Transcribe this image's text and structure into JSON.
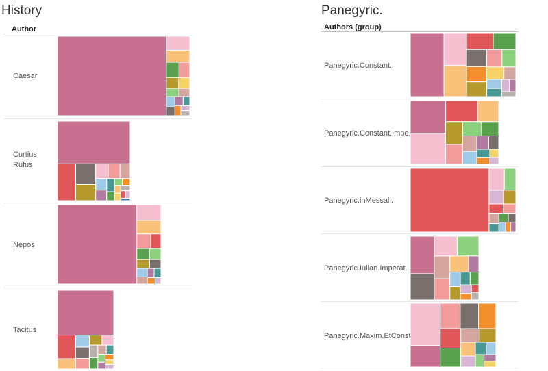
{
  "palette": {
    "pink": "#c87090",
    "lightpink": "#f5bfd0",
    "red": "#e15759",
    "salmon": "#f39c9c",
    "orange": "#f28e2b",
    "peach": "#f9c17a",
    "yellow": "#f4d366",
    "olive": "#b6992d",
    "green": "#59a14f",
    "lightgreen": "#8cd17d",
    "teal": "#499894",
    "lightblue": "#a0cbe8",
    "blue": "#4e79a7",
    "brown": "#79706e",
    "tan": "#d4a6a0",
    "mauve": "#b07aa1",
    "lightmauve": "#d7b5d4",
    "gray": "#bab0ac"
  },
  "panels": [
    {
      "title": "History",
      "header": "Author",
      "rows": [
        {
          "label": "Caesar",
          "cells": [
            {
              "color": "pink",
              "value": 58.0
            },
            {
              "color": "lightpink",
              "value": 2.2
            },
            {
              "color": "peach",
              "value": 1.9
            },
            {
              "color": "green",
              "value": 1.3
            },
            {
              "color": "salmon",
              "value": 1.1
            },
            {
              "color": "olive",
              "value": 0.9
            },
            {
              "color": "yellow",
              "value": 0.8
            },
            {
              "color": "lightgreen",
              "value": 0.7
            },
            {
              "color": "tan",
              "value": 0.6
            },
            {
              "color": "lightblue",
              "value": 0.6
            },
            {
              "color": "brown",
              "value": 0.5
            },
            {
              "color": "mauve",
              "value": 0.5
            },
            {
              "color": "teal",
              "value": 0.4
            },
            {
              "color": "orange",
              "value": 0.4
            },
            {
              "color": "lightmauve",
              "value": 0.3
            },
            {
              "color": "gray",
              "value": 0.3
            }
          ]
        },
        {
          "label": "Curtius Rufus",
          "cells": [
            {
              "color": "pink",
              "value": 27.0
            },
            {
              "color": "red",
              "value": 5.8
            },
            {
              "color": "brown",
              "value": 3.6
            },
            {
              "color": "olive",
              "value": 2.8
            },
            {
              "color": "lightpink",
              "value": 1.6
            },
            {
              "color": "salmon",
              "value": 1.5
            },
            {
              "color": "tan",
              "value": 1.3
            },
            {
              "color": "lightblue",
              "value": 1.1
            },
            {
              "color": "mauve",
              "value": 1.0
            },
            {
              "color": "teal",
              "value": 0.9
            },
            {
              "color": "green",
              "value": 0.6
            },
            {
              "color": "lightgreen",
              "value": 0.5
            },
            {
              "color": "orange",
              "value": 0.5
            },
            {
              "color": "peach",
              "value": 0.4
            },
            {
              "color": "yellow",
              "value": 0.4
            },
            {
              "color": "gray",
              "value": 0.4
            },
            {
              "color": "red",
              "value": 0.3
            },
            {
              "color": "lightmauve",
              "value": 0.3
            },
            {
              "color": "blue",
              "value": 0.2
            }
          ]
        },
        {
          "label": "Nepos",
          "cells": [
            {
              "color": "pink",
              "value": 50.0
            },
            {
              "color": "lightpink",
              "value": 3.0
            },
            {
              "color": "peach",
              "value": 2.6
            },
            {
              "color": "salmon",
              "value": 1.6
            },
            {
              "color": "red",
              "value": 1.2
            },
            {
              "color": "green",
              "value": 1.1
            },
            {
              "color": "lightgreen",
              "value": 1.0
            },
            {
              "color": "olive",
              "value": 0.9
            },
            {
              "color": "brown",
              "value": 0.8
            },
            {
              "color": "lightblue",
              "value": 0.7
            },
            {
              "color": "tan",
              "value": 0.6
            },
            {
              "color": "mauve",
              "value": 0.5
            },
            {
              "color": "teal",
              "value": 0.5
            },
            {
              "color": "orange",
              "value": 0.4
            },
            {
              "color": "lightmauve",
              "value": 0.3
            }
          ]
        },
        {
          "label": "Tacitus",
          "cells": [
            {
              "color": "pink",
              "value": 26.0
            },
            {
              "color": "red",
              "value": 4.4
            },
            {
              "color": "peach",
              "value": 1.9
            },
            {
              "color": "lightblue",
              "value": 1.7
            },
            {
              "color": "brown",
              "value": 1.6
            },
            {
              "color": "salmon",
              "value": 1.5
            },
            {
              "color": "olive",
              "value": 1.3
            },
            {
              "color": "lightpink",
              "value": 1.2
            },
            {
              "color": "gray",
              "value": 1.1
            },
            {
              "color": "green",
              "value": 1.0
            },
            {
              "color": "tan",
              "value": 0.8
            },
            {
              "color": "teal",
              "value": 0.7
            },
            {
              "color": "lightgreen",
              "value": 0.6
            },
            {
              "color": "mauve",
              "value": 0.5
            },
            {
              "color": "orange",
              "value": 0.5
            },
            {
              "color": "yellow",
              "value": 0.4
            },
            {
              "color": "lightmauve",
              "value": 0.4
            }
          ]
        }
      ]
    },
    {
      "title": "Panegyric.",
      "header": "Authors (group)",
      "rows": [
        {
          "label": "Panegyric.Constant.",
          "cells": [
            {
              "color": "pink",
              "value": 16.0
            },
            {
              "color": "lightpink",
              "value": 5.5
            },
            {
              "color": "peach",
              "value": 5.2
            },
            {
              "color": "red",
              "value": 3.3
            },
            {
              "color": "green",
              "value": 2.8
            },
            {
              "color": "brown",
              "value": 2.6
            },
            {
              "color": "orange",
              "value": 2.3
            },
            {
              "color": "olive",
              "value": 2.2
            },
            {
              "color": "salmon",
              "value": 2.0
            },
            {
              "color": "lightgreen",
              "value": 1.8
            },
            {
              "color": "yellow",
              "value": 1.6
            },
            {
              "color": "tan",
              "value": 1.1
            },
            {
              "color": "lightblue",
              "value": 1.0
            },
            {
              "color": "teal",
              "value": 0.9
            },
            {
              "color": "lightmauve",
              "value": 0.7
            },
            {
              "color": "mauve",
              "value": 0.6
            },
            {
              "color": "gray",
              "value": 0.5
            }
          ]
        },
        {
          "label": "Panegyric.Constant.Impe..",
          "cells": [
            {
              "color": "pink",
              "value": 9.5
            },
            {
              "color": "lightpink",
              "value": 9.0
            },
            {
              "color": "red",
              "value": 5.6
            },
            {
              "color": "peach",
              "value": 3.6
            },
            {
              "color": "olive",
              "value": 3.2
            },
            {
              "color": "salmon",
              "value": 2.8
            },
            {
              "color": "lightgreen",
              "value": 2.2
            },
            {
              "color": "green",
              "value": 2.0
            },
            {
              "color": "tan",
              "value": 1.8
            },
            {
              "color": "lightblue",
              "value": 1.5
            },
            {
              "color": "mauve",
              "value": 1.3
            },
            {
              "color": "brown",
              "value": 1.1
            },
            {
              "color": "teal",
              "value": 0.9
            },
            {
              "color": "orange",
              "value": 0.7
            },
            {
              "color": "yellow",
              "value": 0.6
            },
            {
              "color": "lightmauve",
              "value": 0.5
            }
          ]
        },
        {
          "label": "Panegyric.inMessall.",
          "cells": [
            {
              "color": "red",
              "value": 30.0
            },
            {
              "color": "lightpink",
              "value": 2.0
            },
            {
              "color": "lightgreen",
              "value": 1.5
            },
            {
              "color": "lightmauve",
              "value": 1.2
            },
            {
              "color": "olive",
              "value": 1.0
            },
            {
              "color": "red",
              "value": 0.8
            },
            {
              "color": "salmon",
              "value": 0.7
            },
            {
              "color": "tan",
              "value": 0.6
            },
            {
              "color": "teal",
              "value": 0.5
            },
            {
              "color": "green",
              "value": 0.5
            },
            {
              "color": "brown",
              "value": 0.4
            },
            {
              "color": "lightblue",
              "value": 0.4
            },
            {
              "color": "orange",
              "value": 0.3
            },
            {
              "color": "mauve",
              "value": 0.3
            }
          ]
        },
        {
          "label": "Panegyric.Iulian.Imperat.",
          "cells": [
            {
              "color": "pink",
              "value": 6.5
            },
            {
              "color": "brown",
              "value": 4.5
            },
            {
              "color": "lightpink",
              "value": 3.3
            },
            {
              "color": "lightgreen",
              "value": 3.1
            },
            {
              "color": "tan",
              "value": 2.6
            },
            {
              "color": "salmon",
              "value": 2.4
            },
            {
              "color": "peach",
              "value": 2.2
            },
            {
              "color": "mauve",
              "value": 1.2
            },
            {
              "color": "lightblue",
              "value": 1.1
            },
            {
              "color": "olive",
              "value": 1.0
            },
            {
              "color": "teal",
              "value": 0.9
            },
            {
              "color": "green",
              "value": 0.8
            },
            {
              "color": "lightmauve",
              "value": 0.7
            },
            {
              "color": "orange",
              "value": 0.5
            },
            {
              "color": "red",
              "value": 0.4
            },
            {
              "color": "gray",
              "value": 0.4
            }
          ]
        },
        {
          "label": "Panegyric.Maxim.EtConst.",
          "cells": [
            {
              "color": "lightpink",
              "value": 9.5
            },
            {
              "color": "pink",
              "value": 4.8
            },
            {
              "color": "salmon",
              "value": 3.8
            },
            {
              "color": "brown",
              "value": 3.5
            },
            {
              "color": "orange",
              "value": 3.3
            },
            {
              "color": "red",
              "value": 3.0
            },
            {
              "color": "green",
              "value": 2.9
            },
            {
              "color": "tan",
              "value": 1.9
            },
            {
              "color": "olive",
              "value": 1.7
            },
            {
              "color": "peach",
              "value": 1.5
            },
            {
              "color": "lightmauve",
              "value": 1.2
            },
            {
              "color": "teal",
              "value": 1.0
            },
            {
              "color": "lightblue",
              "value": 0.9
            },
            {
              "color": "lightgreen",
              "value": 0.8
            },
            {
              "color": "mauve",
              "value": 0.6
            },
            {
              "color": "yellow",
              "value": 0.5
            }
          ]
        }
      ]
    }
  ],
  "chart_data": [
    {
      "type": "heatmap",
      "subtype": "treemap",
      "title": "History",
      "row_header": "Author",
      "rows": [
        "Caesar",
        "Curtius Rufus",
        "Nepos",
        "Tacitus"
      ]
    },
    {
      "type": "heatmap",
      "subtype": "treemap",
      "title": "Panegyric.",
      "row_header": "Authors (group)",
      "rows": [
        "Panegyric.Constant.",
        "Panegyric.Constant.Impe..",
        "Panegyric.inMessall.",
        "Panegyric.Iulian.Imperat.",
        "Panegyric.Maxim.EtConst."
      ]
    }
  ]
}
